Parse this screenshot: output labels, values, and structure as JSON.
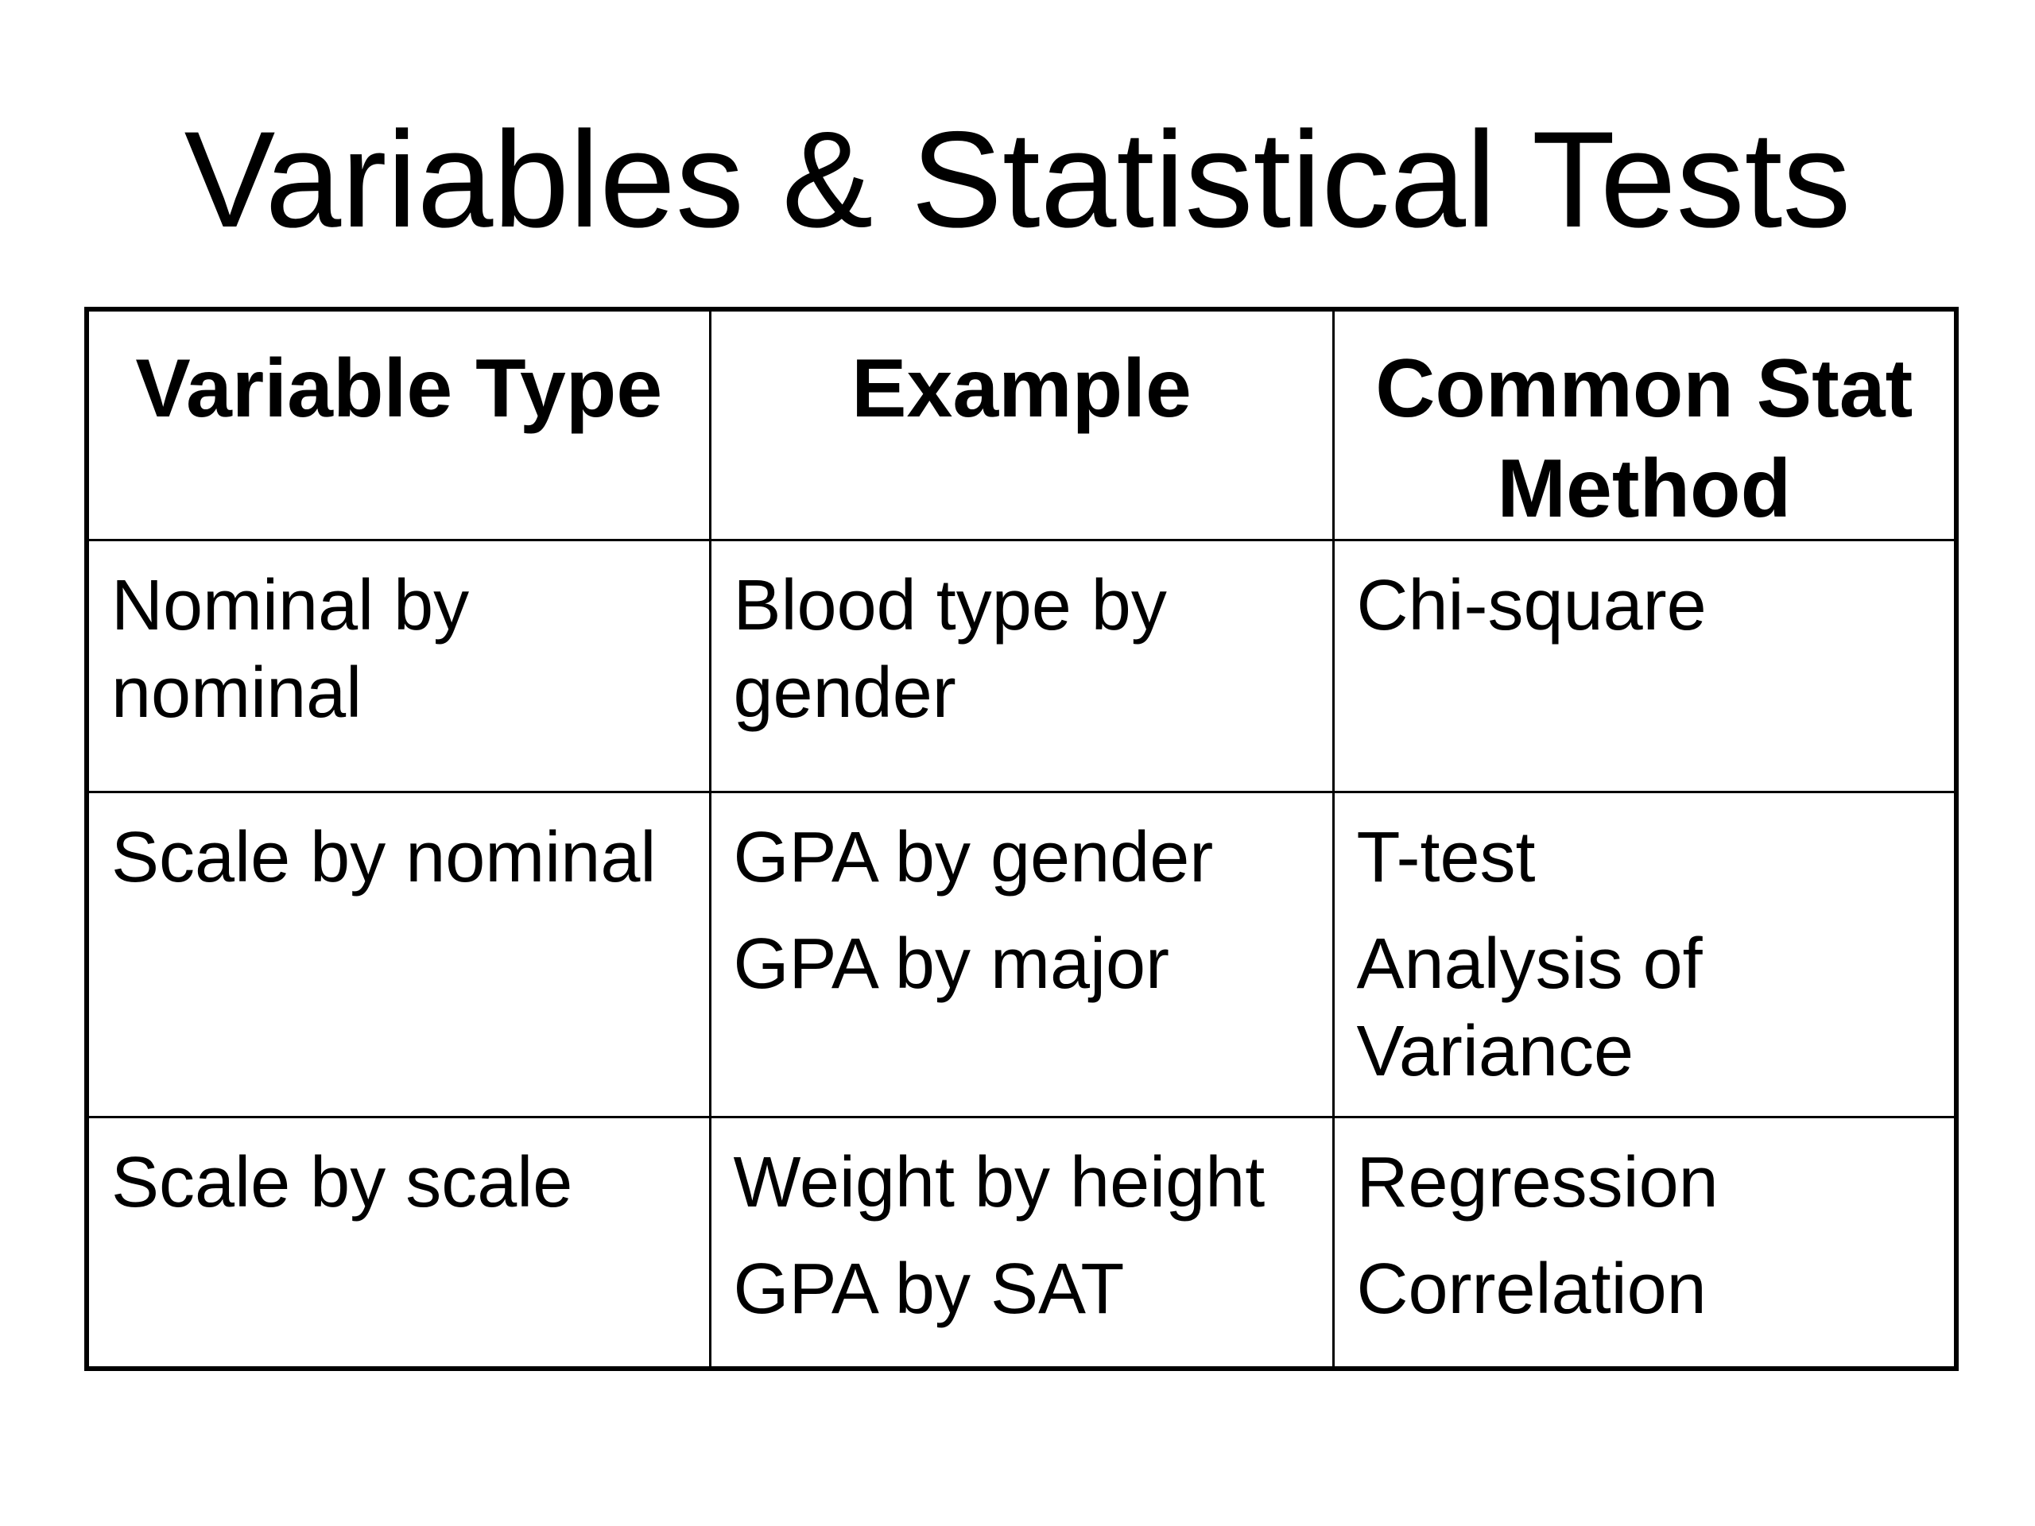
{
  "title": "Variables & Statistical Tests",
  "table": {
    "headers": [
      "Variable Type",
      "Example",
      "Common Stat Method"
    ],
    "rows": [
      {
        "variable_type": "Nominal by nominal",
        "examples": [
          "Blood type by gender"
        ],
        "methods": [
          "Chi-square"
        ]
      },
      {
        "variable_type": "Scale by nominal",
        "examples": [
          "GPA by gender",
          "GPA by major"
        ],
        "methods": [
          "T-test",
          "Analysis of Variance"
        ]
      },
      {
        "variable_type": "Scale by scale",
        "examples": [
          "Weight by height",
          "GPA by SAT"
        ],
        "methods": [
          "Regression",
          "Correlation"
        ]
      }
    ]
  }
}
